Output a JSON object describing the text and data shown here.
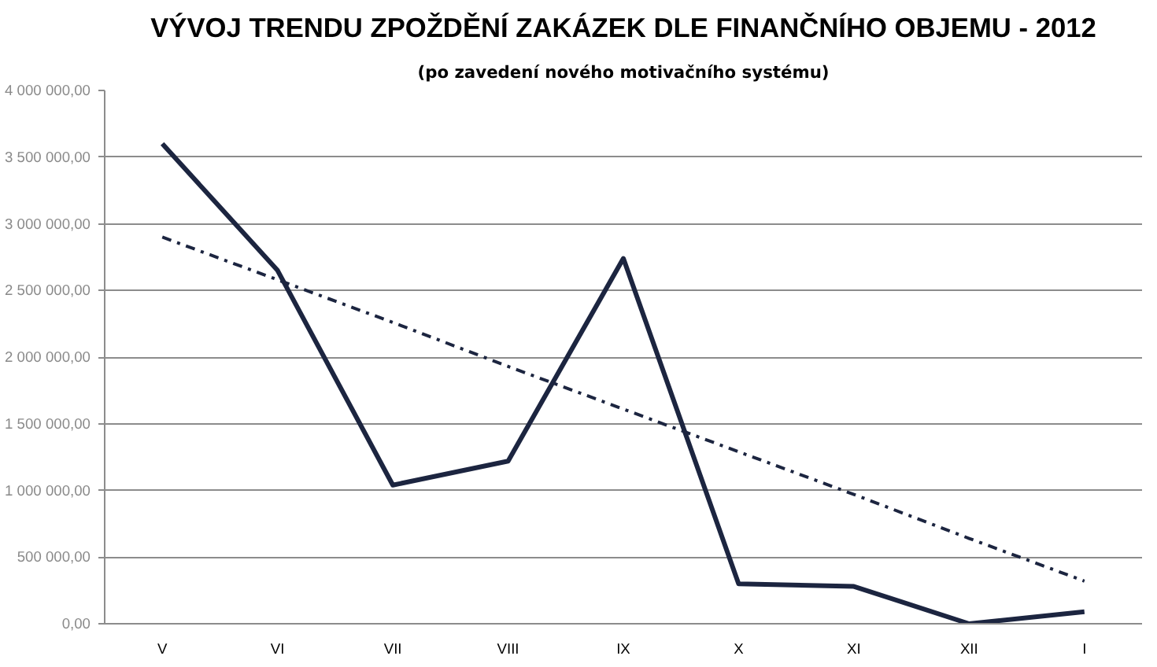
{
  "chart_data": {
    "type": "line",
    "title": "VÝVOJ TRENDU ZPOŽDĚNÍ ZAKÁZEK DLE FINANČNÍHO OBJEMU - 2012",
    "subtitle": "(po zavedení nového motivačního systému)",
    "categories": [
      "V",
      "VI",
      "VII",
      "VIII",
      "IX",
      "X",
      "XI",
      "XII",
      "I"
    ],
    "series": [
      {
        "color": "#1c2540",
        "values": [
          3600000,
          2650000,
          1040000,
          1220000,
          2740000,
          300000,
          280000,
          0,
          90000
        ],
        "line_style": "solid"
      },
      {
        "type": "line",
        "color": "#1c2540",
        "values": [
          2900000,
          2580000,
          2260000,
          1930000,
          1610000,
          1290000,
          970000,
          640000,
          320000
        ],
        "line_style": "dashed"
      }
    ],
    "ylim": [
      0,
      4000000
    ],
    "yticks": [
      {
        "value": 0,
        "label": "0,00"
      },
      {
        "value": 500000,
        "label": "500 000,00"
      },
      {
        "value": 1000000,
        "label": "1 000 000,00"
      },
      {
        "value": 1500000,
        "label": "1 500 000,00"
      },
      {
        "value": 2000000,
        "label": "2 000 000,00"
      },
      {
        "value": 2500000,
        "label": "2 500 000,00"
      },
      {
        "value": 3000000,
        "label": "3 000 000,00"
      },
      {
        "value": 3500000,
        "label": "3 500 000,00"
      },
      {
        "value": 4000000,
        "label": "4 000 000,00"
      }
    ],
    "grid": "y",
    "marker": "none"
  }
}
